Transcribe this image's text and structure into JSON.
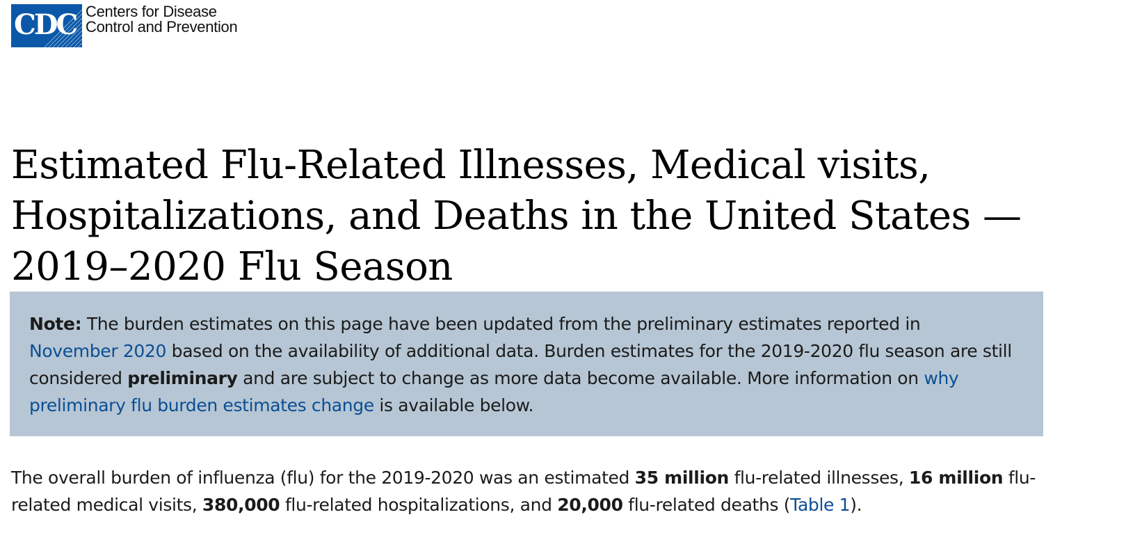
{
  "header": {
    "logo_lettering": "CDC",
    "org_name_line1": "Centers for Disease",
    "org_name_line2": "Control and Prevention",
    "brand_color": "#0b58a8"
  },
  "title": {
    "line1": "Estimated Flu-Related Illnesses, Medical visits,",
    "line2": "Hospitalizations, and Deaths in the United States —",
    "line3": "2019–2020 Flu Season"
  },
  "note": {
    "background_color": "#b6c6d4",
    "label": "Note:",
    "line1_text": " The burden estimates on this page have been updated from the preliminary estimates reported in",
    "link1": "November 2020",
    "line2_text": " based on the availability of additional data. Burden estimates for the 2019-2020 flu season are still",
    "line3_text_a": "considered ",
    "line3_bold": "preliminary",
    "line3_text_b": " and are subject to change as more data become available. More information on ",
    "link2_part1": "why",
    "link2_part2": "preliminary flu burden estimates change",
    "line4_text": " is available below."
  },
  "summary": {
    "line1_a": "The overall burden of influenza (flu) for the 2019-2020 was an estimated ",
    "illnesses": "35 million",
    "line1_b": " flu-related illnesses, ",
    "medical_visits": "16 million",
    "line1_c": " flu-",
    "line2_a": "related medical visits, ",
    "hospitalizations": "380,000",
    "line2_b": " flu-related hospitalizations, and ",
    "deaths": "20,000",
    "line2_c": " flu-related deaths (",
    "table_link": "Table 1",
    "line2_d": ")."
  },
  "link_color": "#0b4e94"
}
